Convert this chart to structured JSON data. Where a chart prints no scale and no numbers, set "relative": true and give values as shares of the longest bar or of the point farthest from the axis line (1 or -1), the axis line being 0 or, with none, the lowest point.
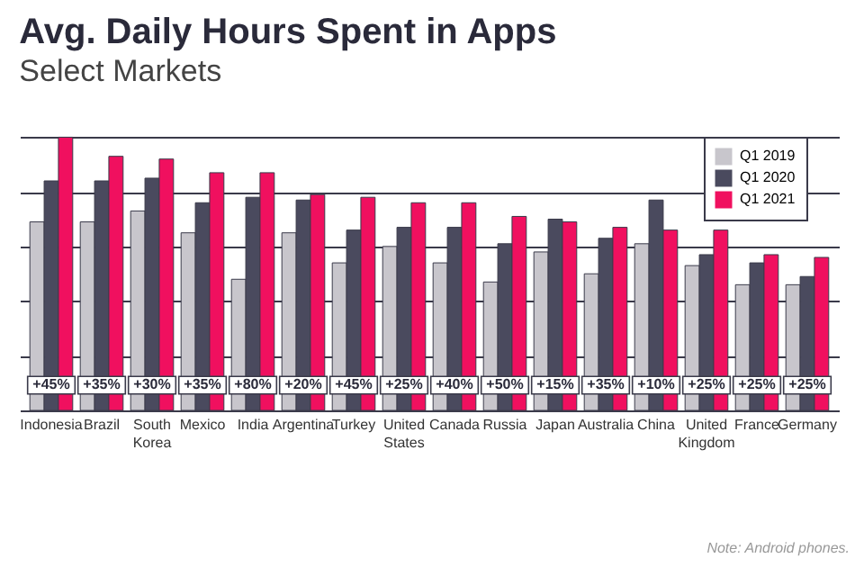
{
  "chart_data": {
    "type": "bar",
    "title": "Avg. Daily Hours Spent in Apps",
    "subtitle": "Select Markets",
    "categories": [
      "Indonesia",
      "Brazil",
      "South Korea",
      "Mexico",
      "India",
      "Argentina",
      "Turkey",
      "United States",
      "Canada",
      "Russia",
      "Japan",
      "Australia",
      "China",
      "United Kingdom",
      "France",
      "Germany"
    ],
    "relative": true,
    "grid": "y",
    "legend": "top right",
    "series": [
      {
        "name": "Q1 2019",
        "color": "#c8c6cc",
        "values": [
          0.69,
          0.69,
          0.73,
          0.65,
          0.48,
          0.65,
          0.54,
          0.6,
          0.54,
          0.47,
          0.58,
          0.5,
          0.61,
          0.53,
          0.46,
          0.46
        ]
      },
      {
        "name": "Q1 2020",
        "color": "#4a4a5e",
        "values": [
          0.84,
          0.84,
          0.85,
          0.76,
          0.78,
          0.77,
          0.66,
          0.67,
          0.67,
          0.61,
          0.7,
          0.63,
          0.77,
          0.57,
          0.54,
          0.49
        ]
      },
      {
        "name": "Q1 2021",
        "color": "#f0105f",
        "values": [
          1.0,
          0.93,
          0.92,
          0.87,
          0.87,
          0.79,
          0.78,
          0.76,
          0.76,
          0.71,
          0.69,
          0.67,
          0.66,
          0.66,
          0.57,
          0.56
        ]
      }
    ],
    "annotations": [
      "Note: Android phones.",
      {
        "text": "+45%",
        "x": "Indonesia"
      },
      {
        "text": "+35%",
        "x": "Brazil"
      },
      {
        "text": "+30%",
        "x": "South Korea"
      },
      {
        "text": "+35%",
        "x": "Mexico"
      },
      {
        "text": "+80%",
        "x": "India"
      },
      {
        "text": "+20%",
        "x": "Argentina"
      },
      {
        "text": "+45%",
        "x": "Turkey"
      },
      {
        "text": "+25%",
        "x": "United States"
      },
      {
        "text": "+40%",
        "x": "Canada"
      },
      {
        "text": "+50%",
        "x": "Russia"
      },
      {
        "text": "+15%",
        "x": "Japan"
      },
      {
        "text": "+35%",
        "x": "Australia"
      },
      {
        "text": "+10%",
        "x": "China"
      },
      {
        "text": "+25%",
        "x": "United Kingdom"
      },
      {
        "text": "+25%",
        "x": "France"
      },
      {
        "text": "+25%",
        "x": "Germany"
      }
    ]
  }
}
